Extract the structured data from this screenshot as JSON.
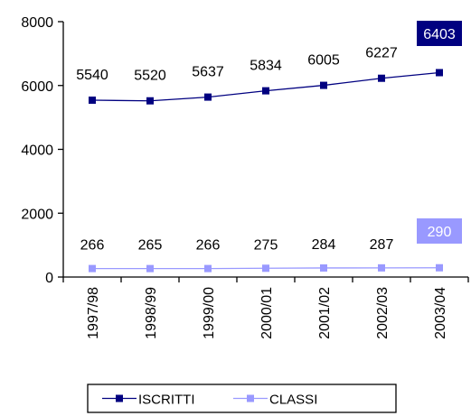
{
  "chart_data": {
    "type": "line",
    "categories": [
      "1997/98",
      "1998/99",
      "1999/00",
      "2000/01",
      "2001/02",
      "2002/03",
      "2003/04"
    ],
    "series": [
      {
        "name": "ISCRITTI",
        "values": [
          5540,
          5520,
          5637,
          5834,
          6005,
          6227,
          6403
        ],
        "color": "#000080",
        "marker": "square"
      },
      {
        "name": "CLASSI",
        "values": [
          266,
          265,
          266,
          275,
          284,
          287,
          290
        ],
        "color": "#9999FF",
        "marker": "square"
      }
    ],
    "data_labels": true,
    "last_label_highlight": true,
    "ylim": [
      0,
      8000
    ],
    "yticks": [
      0,
      2000,
      4000,
      6000,
      8000
    ],
    "title": "",
    "xlabel": "",
    "ylabel": "",
    "grid": false,
    "legend": {
      "position": "bottom",
      "entries": [
        "ISCRITTI",
        "CLASSI"
      ]
    }
  }
}
